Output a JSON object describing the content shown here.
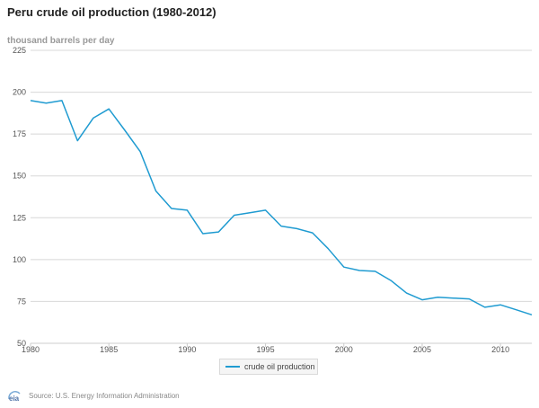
{
  "chart_data": {
    "type": "line",
    "title": "Peru crude oil production (1980-2012)",
    "ylabel": "thousand barrels per day",
    "xlabel": "",
    "ylim": [
      50,
      225
    ],
    "yticks": [
      50,
      75,
      100,
      125,
      150,
      175,
      200,
      225
    ],
    "xlim": [
      1980,
      2012
    ],
    "xticks": [
      1980,
      1985,
      1990,
      1995,
      2000,
      2005,
      2010
    ],
    "grid": true,
    "legend_position": "bottom-center",
    "x": [
      1980,
      1981,
      1982,
      1983,
      1984,
      1985,
      1986,
      1987,
      1988,
      1989,
      1990,
      1991,
      1992,
      1993,
      1994,
      1995,
      1996,
      1997,
      1998,
      1999,
      2000,
      2001,
      2002,
      2003,
      2004,
      2005,
      2006,
      2007,
      2008,
      2009,
      2010,
      2011,
      2012
    ],
    "series": [
      {
        "name": "crude oil production",
        "color": "#1f9bd1",
        "values": [
          195,
          193.5,
          195,
          171,
          184.5,
          190,
          177.5,
          164.5,
          141,
          130.5,
          129.5,
          115.5,
          116.5,
          126.5,
          128,
          129.5,
          120,
          118.5,
          116,
          106.5,
          95.5,
          93.5,
          93,
          87.5,
          80,
          76,
          77.5,
          77,
          76.5,
          71.5,
          73,
          70,
          67
        ]
      }
    ]
  },
  "source_text": "Source: U.S. Energy Information Administration",
  "logo_text": "eia",
  "colors": {
    "gridline": "#d8d8d8",
    "axis": "#cccccc",
    "line": "#1f9bd1"
  }
}
